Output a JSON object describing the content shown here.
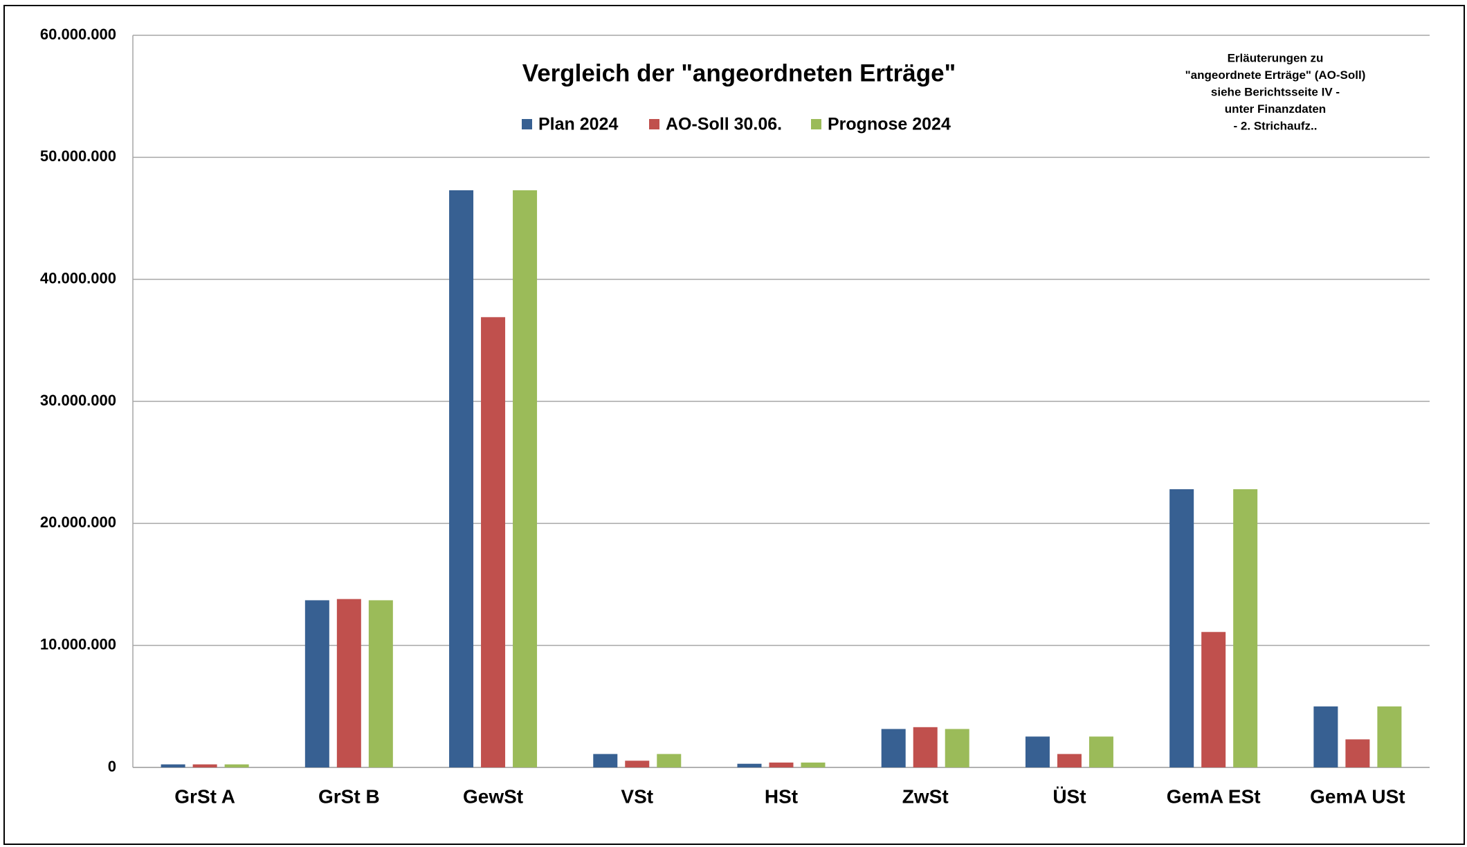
{
  "chart_data": {
    "type": "bar",
    "title": "Vergleich der \"angeordneten Erträge\"",
    "note": [
      "Erläuterungen zu",
      "\"angeordnete Erträge\" (AO-Soll)",
      "siehe  Berichtsseite IV -",
      "unter Finanzdaten",
      "- 2. Strichaufz.."
    ],
    "categories": [
      "GrSt A",
      "GrSt B",
      "GewSt",
      "VSt",
      "HSt",
      "ZwSt",
      "ÜSt",
      "GemA ESt",
      "GemA USt"
    ],
    "series": [
      {
        "name": "Plan 2024",
        "color": "#376092",
        "values": [
          250000,
          13700000,
          47300000,
          1100000,
          300000,
          3150000,
          2530000,
          22800000,
          5000000
        ]
      },
      {
        "name": "AO-Soll 30.06.",
        "color": "#c0504d",
        "values": [
          250000,
          13800000,
          36900000,
          550000,
          400000,
          3300000,
          1100000,
          11100000,
          2300000
        ]
      },
      {
        "name": "Prognose 2024",
        "color": "#9bbb59",
        "values": [
          250000,
          13700000,
          47300000,
          1100000,
          400000,
          3150000,
          2530000,
          22800000,
          5000000
        ]
      }
    ],
    "ylim": [
      0,
      60000000
    ],
    "yticks": [
      0,
      {
        "value": 10000000,
        "label": "10.000.000"
      },
      {
        "value": 20000000,
        "label": "20.000.000"
      },
      {
        "value": 30000000,
        "label": "30.000.000"
      },
      {
        "value": 40000000,
        "label": "40.000.000"
      },
      {
        "value": 50000000,
        "label": "50.000.000"
      },
      {
        "value": 60000000,
        "label": "60.000.000"
      }
    ],
    "grid": true,
    "legend": "top"
  }
}
